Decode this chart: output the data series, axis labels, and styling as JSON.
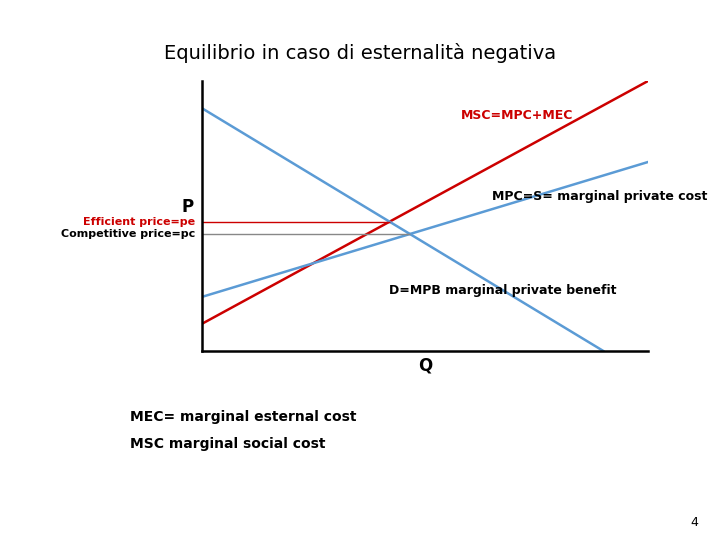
{
  "title": "Equilibrio in caso di esternalità negativa",
  "title_fontsize": 14,
  "background_color": "#ffffff",
  "xlabel": "Q",
  "ylabel": "P",
  "xlim": [
    0,
    10
  ],
  "ylim": [
    0,
    10
  ],
  "msc_label": "MSC=MPC+MEC",
  "msc_color": "#cc0000",
  "mpc_label": "MPC=S= marginal private cost",
  "mpc_color": "#5b9bd5",
  "demand_label": "D=MPB marginal private benefit",
  "demand_color": "#5b9bd5",
  "efficient_price_label": "Efficient price=pe",
  "efficient_price_color": "#cc0000",
  "competitive_price_label": "Competitive price=pc",
  "footnote_line1": "MEC= marginal esternal cost",
  "footnote_line2": "MSC marginal social cost",
  "page_number": "4",
  "axis_color": "#000000",
  "mpc_slope": 0.5,
  "mpc_intercept": 2.0,
  "msc_slope": 0.9,
  "msc_intercept": 1.0,
  "demand_intercept": 9.0,
  "demand_slope": -1.0
}
